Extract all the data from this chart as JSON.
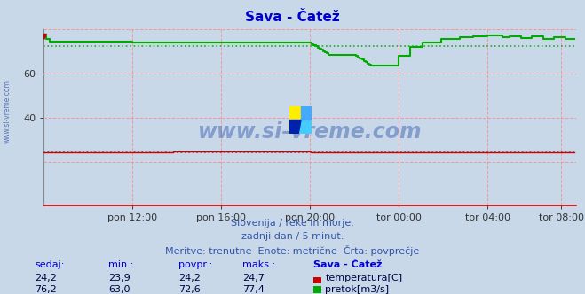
{
  "title": "Sava - Čatež",
  "title_color": "#0000cc",
  "bg_color": "#c8d8e8",
  "plot_bg_color": "#c8d8e8",
  "grid_color": "#ff8888",
  "ylabel_left": "",
  "xlabel": "",
  "xlim": [
    0,
    288
  ],
  "ylim": [
    0,
    80
  ],
  "ytick_vals": [
    40,
    60
  ],
  "xtick_labels": [
    "pon 12:00",
    "pon 16:00",
    "pon 20:00",
    "tor 00:00",
    "tor 04:00",
    "tor 08:00"
  ],
  "xtick_positions": [
    48,
    96,
    144,
    192,
    240,
    280
  ],
  "temp_avg": 24.2,
  "flow_avg": 72.6,
  "temp_color": "#cc0000",
  "flow_color": "#00aa00",
  "watermark": "www.si-vreme.com",
  "watermark_color": "#3355aa",
  "footer_line1": "Slovenija / reke in morje.",
  "footer_line2": "zadnji dan / 5 minut.",
  "footer_line3": "Meritve: trenutne  Enote: metrične  Črta: povprečje",
  "footer_color": "#3355aa",
  "table_header": [
    "sedaj:",
    "min.:",
    "povpr.:",
    "maks.:",
    "Sava - Čatež"
  ],
  "table_temp": [
    "24,2",
    "23,9",
    "24,2",
    "24,7",
    "temperatura[C]"
  ],
  "table_flow": [
    "76,2",
    "63,0",
    "72,6",
    "77,4",
    "pretok[m3/s]"
  ],
  "table_color": "#0000cc",
  "left_label": "www.si-vreme.com"
}
